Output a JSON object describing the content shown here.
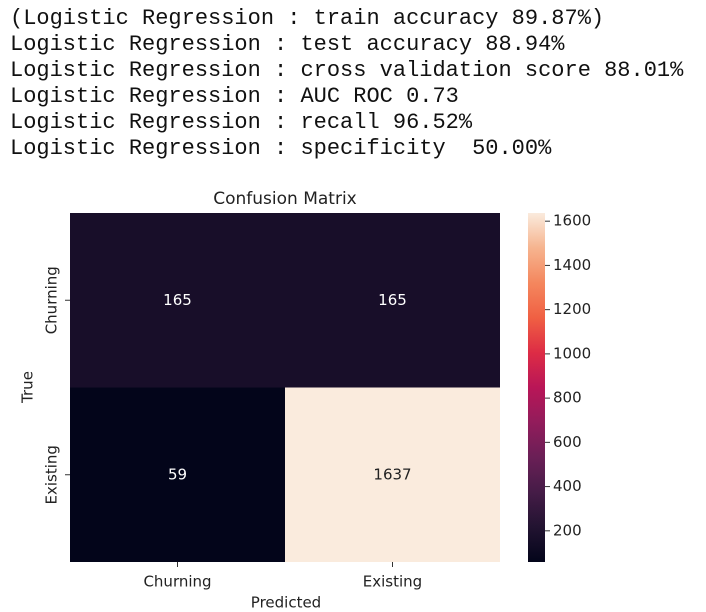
{
  "output_lines": [
    "(Logistic Regression : train accuracy 89.87%)",
    "Logistic Regression : test accuracy 88.94%",
    "Logistic Regression : cross validation score 88.01%",
    "Logistic Regression : AUC ROC 0.73",
    "Logistic Regression : recall 96.52%",
    "Logistic Regression : specificity  50.00%"
  ],
  "chart_data": {
    "type": "heatmap",
    "title": "Confusion Matrix",
    "x_label": "Predicted",
    "y_label": "True",
    "x_categories": [
      "Churning",
      "Existing"
    ],
    "y_categories": [
      "Churning",
      "Existing"
    ],
    "values": [
      [
        165,
        165
      ],
      [
        59,
        1637
      ]
    ],
    "zlim": [
      59,
      1637
    ],
    "zticks": [
      200,
      400,
      600,
      800,
      1000,
      1200,
      1400,
      1600
    ],
    "colormap": [
      "#03051a",
      "#221331",
      "#451c47",
      "#6a1f56",
      "#921c5b",
      "#b91657",
      "#dd2c45",
      "#f06043",
      "#f4875e",
      "#f6b48f",
      "#faebdd"
    ]
  }
}
